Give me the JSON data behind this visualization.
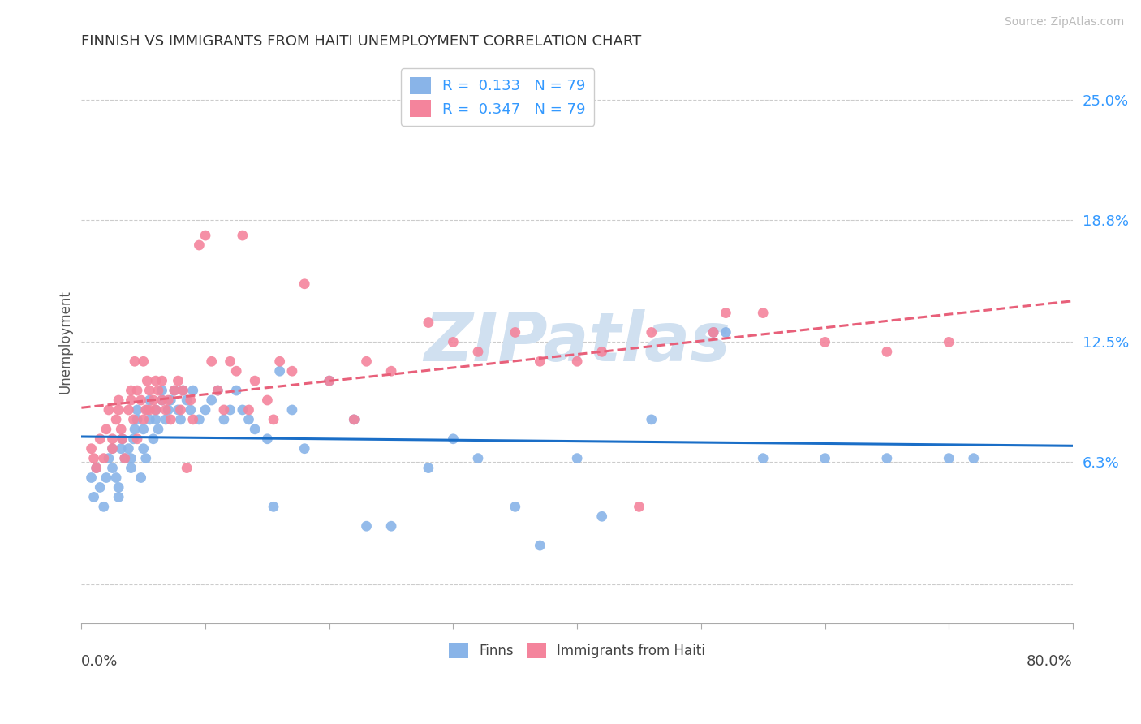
{
  "title": "FINNISH VS IMMIGRANTS FROM HAITI UNEMPLOYMENT CORRELATION CHART",
  "source": "Source: ZipAtlas.com",
  "ylabel": "Unemployment",
  "xlim": [
    0.0,
    0.8
  ],
  "ylim": [
    -0.02,
    0.27
  ],
  "finn_R": 0.133,
  "haiti_R": 0.347,
  "N": 79,
  "finn_color": "#89b4e8",
  "haiti_color": "#f4849c",
  "finn_line_color": "#1a6ec7",
  "haiti_line_color": "#e8607a",
  "watermark": "ZIPatlas",
  "watermark_color": "#d0e0f0",
  "background_color": "#ffffff",
  "ytick_vals": [
    0.0,
    0.063,
    0.125,
    0.188,
    0.25
  ],
  "ytick_labels": [
    "",
    "6.3%",
    "12.5%",
    "18.8%",
    "25.0%"
  ],
  "finn_x": [
    0.008,
    0.01,
    0.012,
    0.015,
    0.018,
    0.02,
    0.022,
    0.025,
    0.025,
    0.028,
    0.03,
    0.03,
    0.032,
    0.033,
    0.035,
    0.038,
    0.04,
    0.04,
    0.042,
    0.043,
    0.045,
    0.045,
    0.048,
    0.05,
    0.05,
    0.052,
    0.053,
    0.055,
    0.055,
    0.058,
    0.06,
    0.06,
    0.062,
    0.065,
    0.065,
    0.068,
    0.07,
    0.072,
    0.075,
    0.078,
    0.08,
    0.082,
    0.085,
    0.088,
    0.09,
    0.095,
    0.1,
    0.105,
    0.11,
    0.115,
    0.12,
    0.125,
    0.13,
    0.135,
    0.14,
    0.15,
    0.155,
    0.16,
    0.17,
    0.18,
    0.2,
    0.22,
    0.23,
    0.25,
    0.28,
    0.3,
    0.32,
    0.35,
    0.37,
    0.4,
    0.42,
    0.46,
    0.51,
    0.52,
    0.55,
    0.6,
    0.65,
    0.7,
    0.72
  ],
  "finn_y": [
    0.055,
    0.045,
    0.06,
    0.05,
    0.04,
    0.055,
    0.065,
    0.07,
    0.06,
    0.055,
    0.05,
    0.045,
    0.07,
    0.075,
    0.065,
    0.07,
    0.065,
    0.06,
    0.075,
    0.08,
    0.09,
    0.085,
    0.055,
    0.08,
    0.07,
    0.065,
    0.09,
    0.085,
    0.095,
    0.075,
    0.09,
    0.085,
    0.08,
    0.1,
    0.095,
    0.085,
    0.09,
    0.095,
    0.1,
    0.09,
    0.085,
    0.1,
    0.095,
    0.09,
    0.1,
    0.085,
    0.09,
    0.095,
    0.1,
    0.085,
    0.09,
    0.1,
    0.09,
    0.085,
    0.08,
    0.075,
    0.04,
    0.11,
    0.09,
    0.07,
    0.105,
    0.085,
    0.03,
    0.03,
    0.06,
    0.075,
    0.065,
    0.04,
    0.02,
    0.065,
    0.035,
    0.085,
    0.13,
    0.13,
    0.065,
    0.065,
    0.065,
    0.065,
    0.065
  ],
  "haiti_x": [
    0.008,
    0.01,
    0.012,
    0.015,
    0.018,
    0.02,
    0.022,
    0.025,
    0.025,
    0.028,
    0.03,
    0.03,
    0.032,
    0.033,
    0.035,
    0.038,
    0.04,
    0.04,
    0.042,
    0.043,
    0.045,
    0.045,
    0.048,
    0.05,
    0.05,
    0.052,
    0.053,
    0.055,
    0.055,
    0.058,
    0.06,
    0.06,
    0.062,
    0.065,
    0.065,
    0.068,
    0.07,
    0.072,
    0.075,
    0.078,
    0.08,
    0.082,
    0.085,
    0.088,
    0.09,
    0.095,
    0.1,
    0.105,
    0.11,
    0.115,
    0.12,
    0.125,
    0.13,
    0.135,
    0.14,
    0.15,
    0.155,
    0.16,
    0.17,
    0.18,
    0.2,
    0.22,
    0.23,
    0.25,
    0.28,
    0.3,
    0.32,
    0.35,
    0.37,
    0.4,
    0.42,
    0.46,
    0.51,
    0.52,
    0.55,
    0.6,
    0.65,
    0.7,
    0.45
  ],
  "haiti_y": [
    0.07,
    0.065,
    0.06,
    0.075,
    0.065,
    0.08,
    0.09,
    0.075,
    0.07,
    0.085,
    0.09,
    0.095,
    0.08,
    0.075,
    0.065,
    0.09,
    0.1,
    0.095,
    0.085,
    0.115,
    0.075,
    0.1,
    0.095,
    0.085,
    0.115,
    0.09,
    0.105,
    0.09,
    0.1,
    0.095,
    0.105,
    0.09,
    0.1,
    0.095,
    0.105,
    0.09,
    0.095,
    0.085,
    0.1,
    0.105,
    0.09,
    0.1,
    0.06,
    0.095,
    0.085,
    0.175,
    0.18,
    0.115,
    0.1,
    0.09,
    0.115,
    0.11,
    0.18,
    0.09,
    0.105,
    0.095,
    0.085,
    0.115,
    0.11,
    0.155,
    0.105,
    0.085,
    0.115,
    0.11,
    0.135,
    0.125,
    0.12,
    0.13,
    0.115,
    0.115,
    0.12,
    0.13,
    0.13,
    0.14,
    0.14,
    0.125,
    0.12,
    0.125,
    0.04
  ]
}
